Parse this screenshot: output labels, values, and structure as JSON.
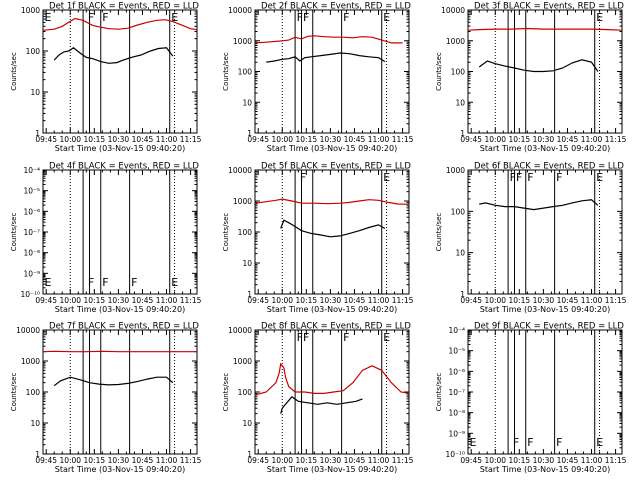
{
  "figure_title": "Detector count rates (Events / LLD) vs start time",
  "colors": {
    "events": "#000000",
    "lld": "#cc0000",
    "axes": "#000000"
  },
  "chart_data": [
    {
      "id": "det-1f",
      "type": "line",
      "title": "Det 1f BLACK = Events, RED = LLD",
      "xlabel": "Start Time (03-Nov-15 09:40:20)",
      "ylabel": "Counts/sec",
      "scale": "log",
      "ylim": [
        1,
        1000
      ],
      "ytick_labels": [
        "1",
        "10",
        "100",
        "1000"
      ],
      "xtick_labels": [
        "09:45",
        "10:00",
        "10:15",
        "10:30",
        "10:45",
        "11:00",
        "11:15"
      ],
      "xlim": [
        583,
        679
      ],
      "dotted_lines": [
        600,
        665
      ],
      "solid_lines": [
        608,
        612,
        619,
        637,
        662
      ],
      "markers": [
        {
          "t": 583,
          "label": "E"
        },
        {
          "t": 610,
          "label": "F"
        },
        {
          "t": 619,
          "label": "F"
        },
        {
          "t": 662,
          "label": "E"
        }
      ],
      "series": [
        {
          "name": "Events",
          "color": "#000000",
          "x": [
            590,
            593,
            596,
            599,
            602,
            606,
            610,
            614,
            619,
            624,
            629,
            633,
            638,
            644,
            650,
            655,
            660,
            664
          ],
          "values": [
            60,
            80,
            95,
            100,
            120,
            90,
            70,
            65,
            55,
            50,
            52,
            60,
            70,
            80,
            100,
            115,
            120,
            75
          ]
        },
        {
          "name": "LLD",
          "color": "#cc0000",
          "x": [
            583,
            590,
            595,
            599,
            603,
            608,
            614,
            619,
            624,
            630,
            636,
            642,
            648,
            654,
            659,
            664,
            670,
            675,
            679
          ],
          "values": [
            320,
            340,
            400,
            500,
            620,
            560,
            420,
            380,
            350,
            340,
            360,
            430,
            500,
            560,
            580,
            520,
            420,
            350,
            330
          ]
        }
      ]
    },
    {
      "id": "det-2f",
      "type": "line",
      "title": "Det 2f BLACK = Events, RED = LLD",
      "xlabel": "Start Time (03-Nov-15 09:40:20)",
      "ylabel": "Counts/sec",
      "scale": "log",
      "ylim": [
        1,
        10000
      ],
      "ytick_labels": [
        "1",
        "10",
        "100",
        "1000",
        "10000"
      ],
      "xtick_labels": [
        "09:45",
        "10:00",
        "10:15",
        "10:30",
        "10:45",
        "11:00",
        "11:15"
      ],
      "xlim": [
        583,
        679
      ],
      "dotted_lines": [
        600,
        665
      ],
      "solid_lines": [
        608,
        612,
        619,
        637,
        662
      ],
      "markers": [
        {
          "t": 608,
          "label": "F"
        },
        {
          "t": 612,
          "label": "F"
        },
        {
          "t": 637,
          "label": "F"
        },
        {
          "t": 662,
          "label": "E"
        }
      ],
      "series": [
        {
          "name": "Events",
          "color": "#000000",
          "x": [
            590,
            595,
            600,
            604,
            608,
            611,
            614,
            618,
            624,
            630,
            636,
            642,
            648,
            654,
            660,
            664
          ],
          "values": [
            200,
            220,
            250,
            260,
            300,
            220,
            280,
            300,
            330,
            360,
            400,
            380,
            330,
            300,
            280,
            210
          ]
        },
        {
          "name": "LLD",
          "color": "#cc0000",
          "x": [
            583,
            590,
            596,
            600,
            604,
            608,
            612,
            616,
            620,
            626,
            632,
            638,
            644,
            650,
            656,
            662,
            668,
            675
          ],
          "values": [
            850,
            900,
            950,
            1000,
            1050,
            1300,
            1150,
            1400,
            1450,
            1350,
            1300,
            1300,
            1250,
            1350,
            1300,
            1050,
            850,
            850
          ]
        }
      ]
    },
    {
      "id": "det-3f",
      "type": "line",
      "title": "Det 3f BLACK = Events, RED = LLD",
      "xlabel": "Start Time (03-Nov-15 09:40:20)",
      "ylabel": "Counts/sec",
      "scale": "log",
      "ylim": [
        1,
        10000
      ],
      "ytick_labels": [
        "1",
        "10",
        "100",
        "1000",
        "10000"
      ],
      "xtick_labels": [
        "09:45",
        "10:00",
        "10:15",
        "10:30",
        "10:45",
        "11:00",
        "11:15"
      ],
      "xlim": [
        583,
        679
      ],
      "dotted_lines": [
        600,
        665
      ],
      "solid_lines": [
        608,
        612,
        619,
        637,
        662
      ],
      "markers": [
        {
          "t": 662,
          "label": "E"
        }
      ],
      "series": [
        {
          "name": "Events",
          "color": "#000000",
          "x": [
            590,
            595,
            600,
            606,
            612,
            618,
            624,
            630,
            636,
            642,
            648,
            654,
            660,
            664
          ],
          "values": [
            140,
            220,
            180,
            150,
            130,
            110,
            100,
            100,
            105,
            130,
            190,
            240,
            200,
            100
          ]
        },
        {
          "name": "LLD",
          "color": "#cc0000",
          "x": [
            583,
            590,
            600,
            610,
            620,
            630,
            640,
            650,
            660,
            670,
            679
          ],
          "values": [
            2200,
            2300,
            2400,
            2400,
            2500,
            2400,
            2400,
            2400,
            2400,
            2300,
            2200
          ]
        }
      ]
    },
    {
      "id": "det-4f",
      "type": "line",
      "title": "Det 4f BLACK = Events, RED = LLD",
      "xlabel": "Start Time (03-Nov-15 09:40:20)",
      "ylabel": "Counts/sec",
      "scale": "log",
      "ylim": [
        1e-10,
        0.0001
      ],
      "ytick_labels": [
        "10⁻¹⁰",
        "10⁻⁹",
        "10⁻⁸",
        "10⁻⁷",
        "10⁻⁶",
        "10⁻⁵",
        "10⁻⁴"
      ],
      "xtick_labels": [
        "09:45",
        "10:00",
        "10:15",
        "10:30",
        "10:45",
        "11:00",
        "11:15"
      ],
      "xlim": [
        583,
        679
      ],
      "dotted_lines": [
        600,
        665
      ],
      "solid_lines": [
        608,
        612,
        619,
        637,
        662
      ],
      "markers": [
        {
          "t": 583,
          "label": "E"
        },
        {
          "t": 610,
          "label": "F"
        },
        {
          "t": 619,
          "label": "F"
        },
        {
          "t": 637,
          "label": "F"
        },
        {
          "t": 662,
          "label": "E"
        }
      ],
      "series": []
    },
    {
      "id": "det-5f",
      "type": "line",
      "title": "Det 5f BLACK = Events, RED = LLD",
      "xlabel": "Start Time (03-Nov-15 09:40:20)",
      "ylabel": "Counts/sec",
      "scale": "log",
      "ylim": [
        1,
        10000
      ],
      "ytick_labels": [
        "1",
        "10",
        "100",
        "1000",
        "10000"
      ],
      "xtick_labels": [
        "09:45",
        "10:00",
        "10:15",
        "10:30",
        "10:45",
        "11:00",
        "11:15"
      ],
      "xlim": [
        583,
        679
      ],
      "dotted_lines": [
        600,
        665
      ],
      "solid_lines": [
        608,
        612,
        619,
        637,
        662
      ],
      "markers": [
        {
          "t": 610,
          "label": "F"
        },
        {
          "t": 662,
          "label": "E"
        }
      ],
      "series": [
        {
          "name": "Events",
          "color": "#000000",
          "x": [
            599,
            601,
            604,
            608,
            612,
            618,
            624,
            630,
            636,
            642,
            648,
            654,
            660,
            664
          ],
          "values": [
            130,
            240,
            200,
            150,
            110,
            90,
            80,
            70,
            75,
            90,
            110,
            140,
            170,
            130
          ]
        },
        {
          "name": "LLD",
          "color": "#cc0000",
          "x": [
            583,
            590,
            596,
            600,
            606,
            612,
            620,
            628,
            636,
            642,
            648,
            654,
            660,
            666,
            672,
            679
          ],
          "values": [
            850,
            950,
            1050,
            1150,
            1000,
            850,
            850,
            820,
            850,
            900,
            1000,
            1100,
            1050,
            900,
            800,
            780
          ]
        }
      ]
    },
    {
      "id": "det-6f",
      "type": "line",
      "title": "Det 6f BLACK = Events, RED = LLD",
      "xlabel": "Start Time (03-Nov-15 09:40:20)",
      "ylabel": "Counts/sec",
      "scale": "log",
      "ylim": [
        1,
        1000
      ],
      "ytick_labels": [
        "1",
        "10",
        "100",
        "1000"
      ],
      "xtick_labels": [
        "09:45",
        "10:00",
        "10:15",
        "10:30",
        "10:45",
        "11:00",
        "11:15"
      ],
      "xlim": [
        583,
        679
      ],
      "dotted_lines": [
        600,
        665
      ],
      "solid_lines": [
        608,
        612,
        619,
        637,
        662
      ],
      "markers": [
        {
          "t": 608,
          "label": "F"
        },
        {
          "t": 612,
          "label": "F"
        },
        {
          "t": 619,
          "label": "F"
        },
        {
          "t": 637,
          "label": "F"
        },
        {
          "t": 662,
          "label": "E"
        }
      ],
      "series": [
        {
          "name": "Events",
          "color": "#000000",
          "x": [
            590,
            594,
            600,
            606,
            612,
            618,
            624,
            630,
            636,
            642,
            648,
            654,
            660,
            664
          ],
          "values": [
            150,
            160,
            140,
            130,
            130,
            120,
            110,
            120,
            130,
            140,
            160,
            180,
            190,
            140
          ]
        }
      ]
    },
    {
      "id": "det-7f",
      "type": "line",
      "title": "Det 7f BLACK = Events, RED = LLD",
      "xlabel": "Start Time (03-Nov-15 09:40:20)",
      "ylabel": "Counts/sec",
      "scale": "log",
      "ylim": [
        1,
        10000
      ],
      "ytick_labels": [
        "1",
        "10",
        "100",
        "1000",
        "10000"
      ],
      "xtick_labels": [
        "09:45",
        "10:00",
        "10:15",
        "10:30",
        "10:45",
        "11:00",
        "11:15"
      ],
      "xlim": [
        583,
        679
      ],
      "dotted_lines": [
        600,
        665
      ],
      "solid_lines": [
        608,
        612,
        619,
        637,
        662
      ],
      "markers": [],
      "series": [
        {
          "name": "Events",
          "color": "#000000",
          "x": [
            590,
            594,
            600,
            606,
            612,
            618,
            624,
            630,
            636,
            642,
            648,
            654,
            660,
            664
          ],
          "values": [
            160,
            230,
            300,
            250,
            200,
            180,
            170,
            175,
            190,
            220,
            260,
            300,
            300,
            200
          ]
        },
        {
          "name": "LLD",
          "color": "#cc0000",
          "x": [
            583,
            590,
            600,
            610,
            620,
            630,
            640,
            650,
            660,
            670,
            679
          ],
          "values": [
            2000,
            2050,
            2000,
            2000,
            2050,
            2000,
            2000,
            2000,
            2000,
            2000,
            2000
          ]
        }
      ]
    },
    {
      "id": "det-8f",
      "type": "line",
      "title": "Det 8f BLACK = Events, RED = LLD",
      "xlabel": "Start Time (03-Nov-15 09:40:20)",
      "ylabel": "Counts/sec",
      "scale": "log",
      "ylim": [
        1,
        10000
      ],
      "ytick_labels": [
        "1",
        "10",
        "100",
        "1000",
        "10000"
      ],
      "xtick_labels": [
        "09:45",
        "10:00",
        "10:15",
        "10:30",
        "10:45",
        "11:00",
        "11:15"
      ],
      "xlim": [
        583,
        679
      ],
      "dotted_lines": [
        600,
        665
      ],
      "solid_lines": [
        608,
        612,
        619,
        637,
        662
      ],
      "markers": [
        {
          "t": 608,
          "label": "F"
        },
        {
          "t": 612,
          "label": "F"
        },
        {
          "t": 637,
          "label": "F"
        },
        {
          "t": 662,
          "label": "E"
        }
      ],
      "series": [
        {
          "name": "Events",
          "color": "#000000",
          "x": [
            599,
            600,
            601,
            606,
            610,
            616,
            622,
            628,
            634,
            640,
            646,
            650
          ],
          "values": [
            20,
            30,
            35,
            70,
            50,
            45,
            40,
            45,
            40,
            45,
            50,
            60
          ]
        },
        {
          "name": "LLD",
          "color": "#cc0000",
          "x": [
            583,
            590,
            596,
            598,
            599,
            600,
            601,
            602,
            604,
            608,
            614,
            620,
            626,
            632,
            638,
            644,
            650,
            656,
            662,
            668,
            674,
            679
          ],
          "values": [
            80,
            100,
            200,
            400,
            800,
            700,
            600,
            300,
            150,
            100,
            100,
            90,
            90,
            100,
            110,
            200,
            500,
            700,
            500,
            200,
            100,
            90
          ]
        }
      ]
    },
    {
      "id": "det-9f",
      "type": "line",
      "title": "Det 9f BLACK = Events, RED = LLD",
      "xlabel": "Start Time (03-Nov-15 09:40:20)",
      "ylabel": "Counts/sec",
      "scale": "log",
      "ylim": [
        1e-10,
        0.0001
      ],
      "ytick_labels": [
        "10⁻¹⁰",
        "10⁻⁹",
        "10⁻⁸",
        "10⁻⁷",
        "10⁻⁶",
        "10⁻⁵",
        "10⁻⁴"
      ],
      "xtick_labels": [
        "09:45",
        "10:00",
        "10:15",
        "10:30",
        "10:45",
        "11:00",
        "11:15"
      ],
      "xlim": [
        583,
        679
      ],
      "dotted_lines": [
        600,
        665
      ],
      "solid_lines": [
        608,
        612,
        619,
        637,
        662
      ],
      "markers": [
        {
          "t": 583,
          "label": "E"
        },
        {
          "t": 610,
          "label": "F"
        },
        {
          "t": 619,
          "label": "F"
        },
        {
          "t": 637,
          "label": "F"
        },
        {
          "t": 662,
          "label": "E"
        }
      ],
      "series": []
    }
  ]
}
